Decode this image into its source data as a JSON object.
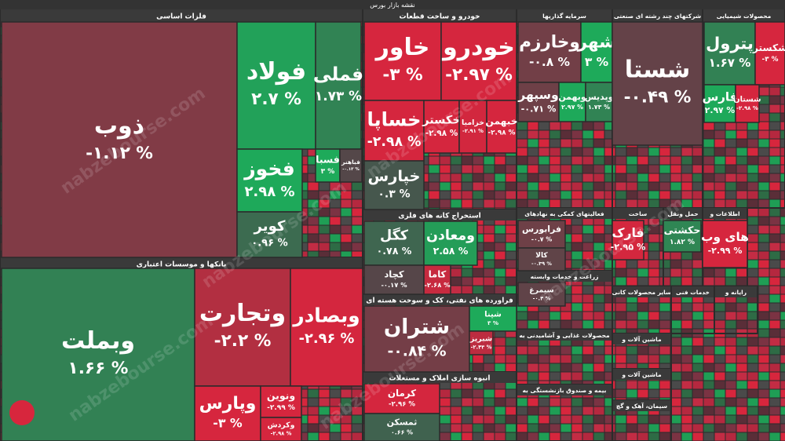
{
  "header": {
    "title": "نقشه بازار بورس"
  },
  "watermark": "nabzebourse.com",
  "sectors": [
    {
      "name": "فلزات اساسی",
      "tiles": [
        {
          "name": "ذوب",
          "change": -1.12,
          "change_label": "-۱.۱۲ %"
        },
        {
          "name": "فولاد",
          "change": 2.7,
          "change_label": "۲.۷ %"
        },
        {
          "name": "فملی",
          "change": 1.73,
          "change_label": "۱.۷۳ %"
        },
        {
          "name": "فخوز",
          "change": 2.98,
          "change_label": "۲.۹۸ %"
        },
        {
          "name": "کویر",
          "change": 0.96,
          "change_label": "۰.۹۶ %"
        },
        {
          "name": "فسبا",
          "change": 3,
          "change_label": "۳ %"
        },
        {
          "name": "فباهنر",
          "change": -0.13,
          "change_label": "-۰.۱۳ %"
        }
      ]
    },
    {
      "name": "بانکها و موسسات اعتباری",
      "tiles": [
        {
          "name": "وبملت",
          "change": 1.66,
          "change_label": "۱.۶۶ %"
        },
        {
          "name": "وتجارت",
          "change": -2.2,
          "change_label": "-۲.۲ %"
        },
        {
          "name": "وبصادر",
          "change": -2.96,
          "change_label": "-۲.۹۶ %"
        },
        {
          "name": "وپارس",
          "change": -3,
          "change_label": "-۳ %"
        },
        {
          "name": "ونوین",
          "change": -2.99,
          "change_label": "-۲.۹۹ %"
        },
        {
          "name": "وکردش",
          "change": -2.98,
          "change_label": "-۲.۹۸ %"
        }
      ]
    },
    {
      "name": "خودرو و ساخت قطعات",
      "tiles": [
        {
          "name": "خاور",
          "change": -3,
          "change_label": "-۳ %"
        },
        {
          "name": "خودرو",
          "change": -2.97,
          "change_label": "-۲.۹۷ %"
        },
        {
          "name": "خساپا",
          "change": -2.98,
          "change_label": "-۲.۹۸ %"
        },
        {
          "name": "خکستر",
          "change": -2.98,
          "change_label": "-۲.۹۸ %"
        },
        {
          "name": "خزامیا",
          "change": -2.91,
          "change_label": "-۲.۹۱ %"
        },
        {
          "name": "خبهمن",
          "change": -2.98,
          "change_label": "-۲.۹۸ %"
        },
        {
          "name": "خپارس",
          "change": 0.3,
          "change_label": "۰.۳ %"
        }
      ]
    },
    {
      "name": "استخراج کانه های فلزی",
      "tiles": [
        {
          "name": "کگل",
          "change": 0.78,
          "change_label": "۰.۷۸ %"
        },
        {
          "name": "ومعادن",
          "change": 2.58,
          "change_label": "۲.۵۸ %"
        },
        {
          "name": "کچاد",
          "change": -0.17,
          "change_label": "-۰.۱۷ %"
        },
        {
          "name": "کاما",
          "change": -2.68,
          "change_label": "-۲.۶۸ %"
        }
      ]
    },
    {
      "name": "فراورده های نفتی، کک و سوخت هسته ای",
      "tiles": [
        {
          "name": "شتران",
          "change": -0.84,
          "change_label": "-۰.۸۴ %"
        },
        {
          "name": "شپنا",
          "change": 3,
          "change_label": "۳ %"
        },
        {
          "name": "شبریز",
          "change": -2.43,
          "change_label": "-۲.۴۳ %"
        }
      ]
    },
    {
      "name": "انبوه سازی املاک و مستغلات",
      "tiles": [
        {
          "name": "کرمان",
          "change": -2.96,
          "change_label": "-۲.۹۶ %"
        },
        {
          "name": "ثمسکن",
          "change": 0.66,
          "change_label": "۰.۶۶ %"
        }
      ]
    },
    {
      "name": "سرمایه گذاریها",
      "tiles": [
        {
          "name": "وخارزم",
          "change": -0.8,
          "change_label": "-۰.۸ %"
        },
        {
          "name": "شهر",
          "change": 3,
          "change_label": "۳ %"
        },
        {
          "name": "وسپهر",
          "change": -0.71,
          "change_label": "-۰.۷۱ %"
        },
        {
          "name": "وبهمن",
          "change": 2.97,
          "change_label": "۲.۹۷ %"
        },
        {
          "name": "وپدیس",
          "change": 1.73,
          "change_label": "۱.۷۳ %"
        }
      ]
    },
    {
      "name": "شرکتهای چند رشته ای صنعتی",
      "tiles": [
        {
          "name": "شستا",
          "change": -0.49,
          "change_label": "-۰.۴۹ %"
        }
      ]
    },
    {
      "name": "محصولات شیمیایی",
      "tiles": [
        {
          "name": "پترول",
          "change": 1.67,
          "change_label": "۱.۶۷ %"
        },
        {
          "name": "شکستر",
          "change": -3,
          "change_label": "-۳ %"
        },
        {
          "name": "فارس",
          "change": 2.97,
          "change_label": "۲.۹۷ %"
        },
        {
          "name": "شستان",
          "change": -2.98,
          "change_label": "-۲.۹۸ %"
        }
      ]
    },
    {
      "name": "فعالیتهای کمکی به نهادهای",
      "tiles": [
        {
          "name": "فرابورس",
          "change": -0.7,
          "change_label": "-۰.۷ %"
        },
        {
          "name": "کالا",
          "change": -0.39,
          "change_label": "-۰.۳۹ %"
        }
      ]
    },
    {
      "name": "ساخت",
      "tiles": [
        {
          "name": "فارک",
          "change": -2.95,
          "change_label": "-۲.۹۵ %"
        }
      ]
    },
    {
      "name": "حمل ونقل",
      "tiles": [
        {
          "name": "حکشتی",
          "change": 1.82,
          "change_label": "۱.۸۲ %"
        }
      ]
    },
    {
      "name": "اطلاعات و",
      "tiles": [
        {
          "name": "های وب",
          "change": -2.99,
          "change_label": "-۲.۹۹ %"
        }
      ]
    },
    {
      "name": "زراعت و خدمات وابسته",
      "tiles": [
        {
          "name": "سیمرغ",
          "change": -0.4,
          "change_label": "-۰.۴ %"
        }
      ]
    },
    {
      "name": "محصولات غذایی و آشامیدنی به",
      "tiles": []
    },
    {
      "name": "بیمه و صندوق بازنشستگی به",
      "tiles": []
    },
    {
      "name": "سایر محصولات کانی",
      "tiles": []
    },
    {
      "name": "خدمات فنی",
      "tiles": []
    },
    {
      "name": "رایانه و",
      "tiles": []
    },
    {
      "name": "ماشین آلات و",
      "tiles": []
    },
    {
      "name": "ماشین آلات و",
      "tiles": []
    },
    {
      "name": "سیمان، آهک و گچ",
      "tiles": []
    }
  ]
}
